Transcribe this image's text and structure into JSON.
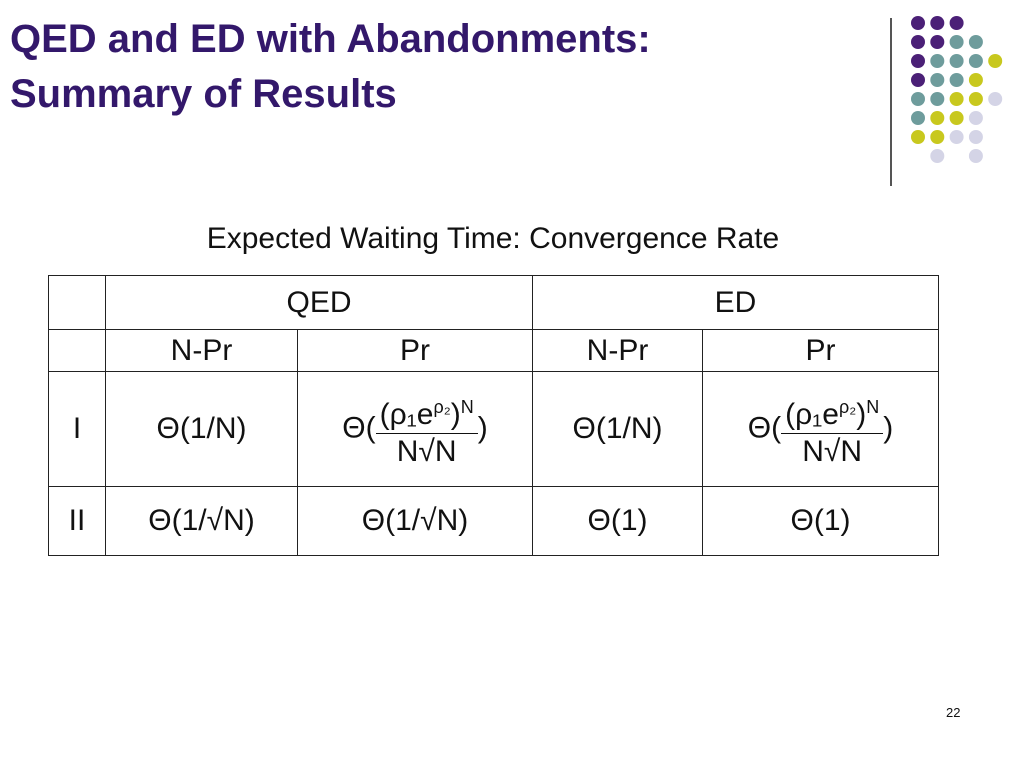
{
  "header": {
    "title_lines": [
      "QED and ED with Abandonments:",
      "Summary of Results"
    ]
  },
  "table": {
    "caption": "Expected Waiting Time: Convergence Rate",
    "group_headers": [
      "QED",
      "ED"
    ],
    "sub_headers": [
      "N-Pr",
      "Pr",
      "N-Pr",
      "Pr"
    ],
    "rows": [
      {
        "label": "I",
        "cells": [
          "Θ(1/N)",
          {
            "open": "Θ(",
            "numerator": {
              "base": "(ρ₁e",
              "exponent": "ρ₂",
              "close": ")",
              "power": "N"
            },
            "denominator": "N√N",
            "close": ")"
          },
          "Θ(1/N)",
          {
            "open": "Θ(",
            "numerator": {
              "base": "(ρ₁e",
              "exponent": "ρ₂",
              "close": ")",
              "power": "N"
            },
            "denominator": "N√N",
            "close": ")"
          }
        ]
      },
      {
        "label": "II",
        "cells": [
          "Θ(1/√N)",
          "Θ(1/√N)",
          "Θ(1)",
          "Θ(1)"
        ]
      }
    ]
  },
  "footer": {
    "page_number": "22"
  }
}
